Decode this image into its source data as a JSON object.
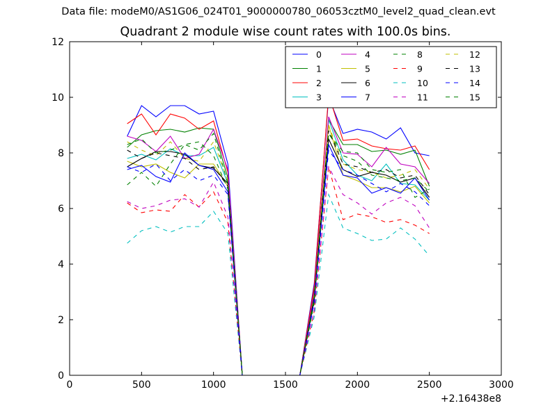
{
  "header": {
    "suptitle": "Data file: modeM0/AS1G06_024T01_9000000780_06053cztM0_level2_quad_clean.evt"
  },
  "chart_data": {
    "type": "line",
    "title": "Quadrant 2 module wise count rates with 100.0s bins.",
    "xlabel": "",
    "ylabel": "",
    "x_offset_label": "+2.16438e8",
    "xlim": [
      0,
      3000
    ],
    "ylim": [
      0,
      12
    ],
    "xticks": [
      "0",
      "500",
      "1000",
      "1500",
      "2000",
      "2500",
      "3000"
    ],
    "yticks": [
      "0",
      "2",
      "4",
      "6",
      "8",
      "10",
      "12"
    ],
    "xtick_values": [
      0,
      500,
      1000,
      1500,
      2000,
      2500,
      3000
    ],
    "ytick_values": [
      0,
      2,
      4,
      6,
      8,
      10,
      12
    ],
    "grid": false,
    "legend_position": "top-right",
    "x": [
      400,
      500,
      600,
      700,
      800,
      900,
      1000,
      1100,
      1200,
      1300,
      1400,
      1500,
      1600,
      1700,
      1800,
      1900,
      2000,
      2100,
      2200,
      2300,
      2400,
      2500
    ],
    "series": [
      {
        "name": "0",
        "color": "#0000ff",
        "dash": "solid",
        "values": [
          8.6,
          9.7,
          9.3,
          9.7,
          9.7,
          9.4,
          9.5,
          7.6,
          0,
          0,
          0,
          0,
          0,
          3.3,
          10.0,
          8.7,
          8.85,
          8.75,
          8.5,
          8.9,
          8.0,
          7.9
        ]
      },
      {
        "name": "1",
        "color": "#008000",
        "dash": "solid",
        "values": [
          8.2,
          8.65,
          8.8,
          8.85,
          8.75,
          8.9,
          8.85,
          7.1,
          0,
          0,
          0,
          0,
          0,
          3.1,
          9.2,
          8.3,
          8.3,
          8.05,
          8.1,
          7.95,
          8.1,
          6.8
        ]
      },
      {
        "name": "2",
        "color": "#ff0000",
        "dash": "solid",
        "values": [
          9.05,
          9.4,
          8.65,
          9.4,
          9.25,
          8.85,
          9.15,
          7.3,
          0,
          0,
          0,
          0,
          0,
          3.2,
          10.1,
          8.45,
          8.5,
          8.25,
          8.15,
          8.1,
          8.25,
          7.4
        ]
      },
      {
        "name": "3",
        "color": "#00bfbf",
        "dash": "solid",
        "values": [
          7.8,
          7.95,
          7.75,
          8.15,
          7.9,
          7.9,
          8.2,
          6.9,
          0,
          0,
          0,
          0,
          0,
          2.9,
          9.2,
          7.75,
          7.2,
          7.0,
          7.6,
          6.9,
          6.85,
          6.3
        ]
      },
      {
        "name": "4",
        "color": "#bf00bf",
        "dash": "solid",
        "values": [
          8.6,
          8.45,
          8.05,
          8.6,
          7.8,
          7.95,
          8.85,
          7.4,
          0,
          0,
          0,
          0,
          0,
          3.0,
          9.3,
          8.0,
          7.95,
          7.5,
          8.2,
          7.6,
          7.5,
          6.9
        ]
      },
      {
        "name": "5",
        "color": "#bfbf00",
        "dash": "solid",
        "values": [
          7.7,
          7.5,
          7.6,
          7.3,
          7.1,
          7.6,
          7.6,
          6.8,
          0,
          0,
          0,
          0,
          0,
          2.8,
          9.0,
          7.2,
          7.0,
          6.75,
          6.75,
          6.6,
          6.8,
          6.2
        ]
      },
      {
        "name": "6",
        "color": "#000000",
        "dash": "solid",
        "values": [
          7.5,
          7.8,
          8.05,
          8.05,
          7.95,
          7.55,
          7.45,
          6.9,
          0,
          0,
          0,
          0,
          0,
          2.8,
          8.5,
          7.4,
          7.15,
          7.3,
          7.2,
          6.95,
          7.1,
          6.4
        ]
      },
      {
        "name": "7",
        "color": "#0000ff",
        "dash": "solid",
        "values": [
          7.4,
          7.55,
          7.15,
          6.95,
          8.0,
          7.55,
          7.4,
          6.6,
          0,
          0,
          0,
          0,
          0,
          2.7,
          8.3,
          7.2,
          7.1,
          6.55,
          6.75,
          6.55,
          7.1,
          6.3
        ]
      },
      {
        "name": "8",
        "color": "#008000",
        "dash": "dashed",
        "values": [
          6.85,
          7.3,
          6.8,
          7.6,
          8.3,
          8.4,
          7.9,
          6.7,
          0,
          0,
          0,
          0,
          0,
          2.6,
          8.7,
          8.05,
          8.0,
          7.4,
          7.3,
          7.4,
          6.4,
          6.7
        ]
      },
      {
        "name": "9",
        "color": "#ff0000",
        "dash": "dashed",
        "values": [
          6.2,
          5.85,
          5.95,
          5.9,
          6.5,
          6.05,
          6.6,
          5.5,
          0,
          0,
          0,
          0,
          0,
          2.3,
          7.5,
          5.6,
          5.8,
          5.7,
          5.5,
          5.6,
          5.4,
          5.1
        ]
      },
      {
        "name": "10",
        "color": "#00bfbf",
        "dash": "dashed",
        "values": [
          4.75,
          5.2,
          5.35,
          5.15,
          5.35,
          5.35,
          5.9,
          5.1,
          0,
          0,
          0,
          0,
          0,
          2.1,
          6.5,
          5.3,
          5.1,
          4.85,
          4.9,
          5.3,
          4.9,
          4.3
        ]
      },
      {
        "name": "11",
        "color": "#bf00bf",
        "dash": "dashed",
        "values": [
          6.25,
          6.0,
          6.1,
          6.3,
          6.35,
          6.05,
          6.95,
          5.7,
          0,
          0,
          0,
          0,
          0,
          2.3,
          7.5,
          6.5,
          6.2,
          5.8,
          6.2,
          6.4,
          6.1,
          5.3
        ]
      },
      {
        "name": "12",
        "color": "#bfbf00",
        "dash": "dashed",
        "values": [
          8.4,
          8.1,
          7.9,
          8.4,
          7.8,
          7.7,
          8.4,
          7.0,
          0,
          0,
          0,
          0,
          0,
          2.9,
          9.0,
          7.6,
          7.4,
          7.3,
          7.1,
          7.2,
          7.4,
          6.7
        ]
      },
      {
        "name": "13",
        "color": "#000000",
        "dash": "dashed",
        "values": [
          8.1,
          7.8,
          8.0,
          7.9,
          7.8,
          7.4,
          7.5,
          6.8,
          0,
          0,
          0,
          0,
          0,
          2.8,
          8.8,
          7.6,
          7.5,
          7.3,
          7.4,
          7.1,
          7.2,
          6.5
        ]
      },
      {
        "name": "14",
        "color": "#0000ff",
        "dash": "dashed",
        "values": [
          7.5,
          7.3,
          7.6,
          7.0,
          7.4,
          7.0,
          7.2,
          6.5,
          0,
          0,
          0,
          0,
          0,
          2.6,
          8.1,
          7.4,
          7.2,
          6.9,
          6.6,
          6.9,
          6.6,
          6.1
        ]
      },
      {
        "name": "15",
        "color": "#008000",
        "dash": "dashed",
        "values": [
          8.3,
          8.5,
          8.0,
          8.1,
          8.3,
          8.1,
          8.7,
          6.9,
          0,
          0,
          0,
          0,
          0,
          2.7,
          8.7,
          7.9,
          7.7,
          7.2,
          7.1,
          7.0,
          7.1,
          6.6
        ]
      }
    ]
  }
}
